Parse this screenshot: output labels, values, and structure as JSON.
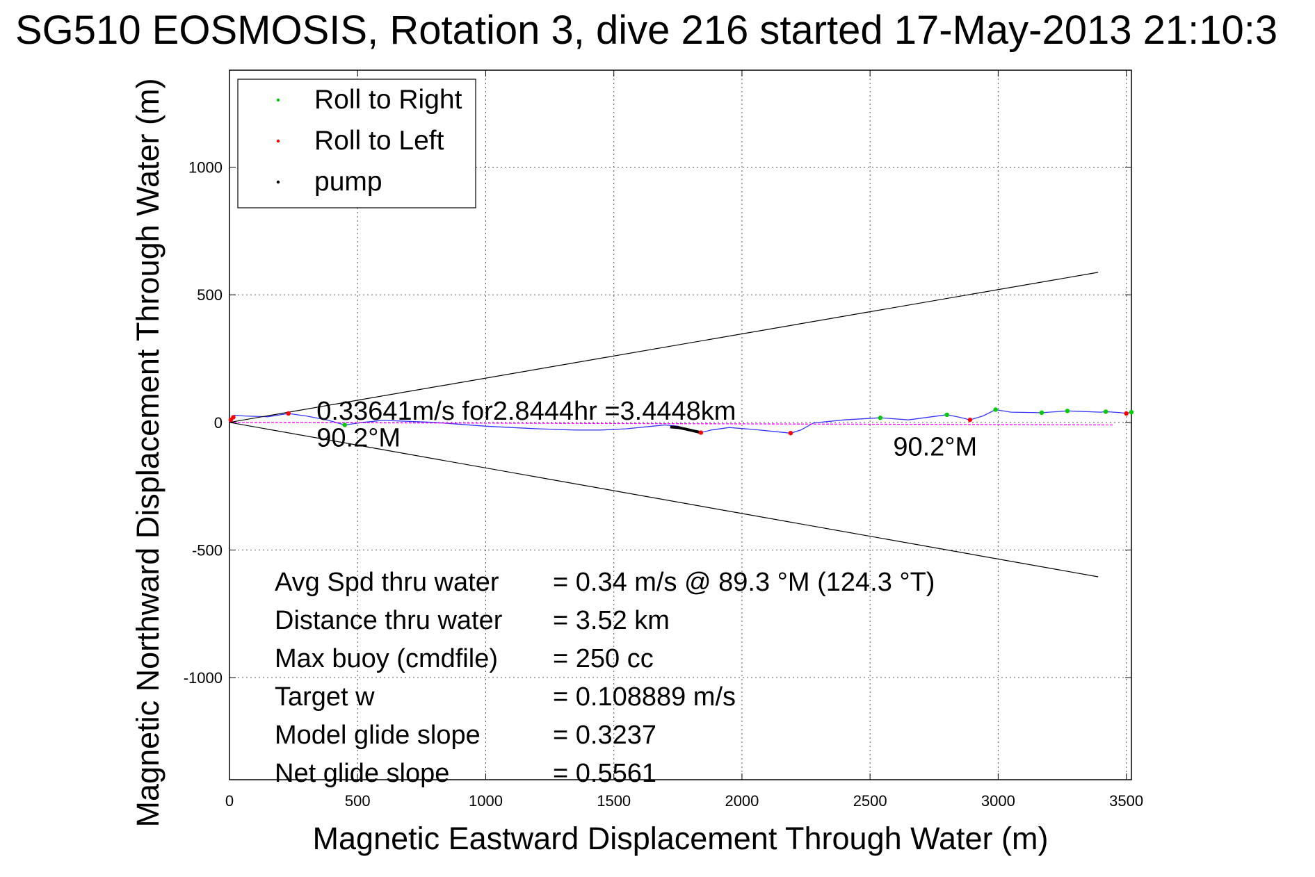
{
  "chart_data": {
    "type": "line",
    "title": "SG510 EOSMOSIS, Rotation 3, dive 216 started 17-May-2013 21:10:3",
    "xlabel": "Magnetic Eastward Displacement Through Water (m)",
    "ylabel": "Magnetic Northward Displacement Through Water (m)",
    "xlim": [
      0,
      3520
    ],
    "ylim": [
      -1400,
      1380
    ],
    "xticks": [
      0,
      500,
      1000,
      1500,
      2000,
      2500,
      3000,
      3500
    ],
    "yticks": [
      -1000,
      -500,
      0,
      500,
      1000
    ],
    "grid": true,
    "legend_position": "top-left",
    "legend": [
      {
        "label": "Roll to Right",
        "color": "#00cc00"
      },
      {
        "label": "Roll to Left",
        "color": "#ff0000"
      },
      {
        "label": "pump",
        "color": "#000000"
      }
    ],
    "series": [
      {
        "style": "track",
        "color": "#3333ff",
        "x": [
          0,
          10,
          20,
          60,
          150,
          230,
          300,
          380,
          450,
          520,
          600,
          800,
          1000,
          1200,
          1350,
          1450,
          1550,
          1650,
          1700,
          1750,
          1800,
          1840,
          1880,
          1950,
          2050,
          2150,
          2190,
          2230,
          2280,
          2400,
          2540,
          2650,
          2800,
          2850,
          2890,
          2940,
          2990,
          3050,
          3170,
          3270,
          3400,
          3420,
          3480,
          3500,
          3520
        ],
        "y": [
          0,
          25,
          28,
          25,
          22,
          35,
          25,
          10,
          -10,
          0,
          8,
          0,
          -15,
          -25,
          -30,
          -30,
          -25,
          -15,
          -10,
          -15,
          -30,
          -40,
          -30,
          -20,
          -28,
          -38,
          -42,
          -30,
          -2,
          10,
          18,
          10,
          30,
          20,
          10,
          25,
          50,
          40,
          38,
          45,
          40,
          42,
          38,
          35,
          40
        ]
      },
      {
        "style": "heading",
        "color": "#ff00ff",
        "x": [
          0,
          3450
        ],
        "y": [
          0,
          -10
        ]
      },
      {
        "style": "pump",
        "color": "#000000",
        "x": [
          1720,
          1750,
          1780,
          1810,
          1840
        ],
        "y": [
          -18,
          -20,
          -26,
          -33,
          -40
        ]
      },
      {
        "style": "cone",
        "color": "#000000",
        "x": [
          0,
          3390
        ],
        "y": [
          0,
          588
        ]
      },
      {
        "style": "cone",
        "color": "#000000",
        "x": [
          0,
          3390
        ],
        "y": [
          0,
          -605
        ]
      }
    ],
    "roll_right_points": {
      "x": [
        450,
        2540,
        2800,
        2990,
        3170,
        3270,
        3420,
        3520
      ],
      "y": [
        -10,
        18,
        30,
        50,
        38,
        45,
        42,
        40
      ]
    },
    "roll_left_points": {
      "x": [
        5,
        15,
        230,
        1840,
        2190,
        2890,
        3500
      ],
      "y": [
        10,
        20,
        35,
        -40,
        -42,
        10,
        35
      ]
    },
    "annotations": [
      {
        "text": "0.33641m/s for2.8444hr =3.4448km",
        "x": 340,
        "y": 10
      },
      {
        "text": "90.2°M",
        "x": 340,
        "y": -95
      },
      {
        "text": "90.2°M",
        "x": 2590,
        "y": -130
      }
    ],
    "stats": [
      {
        "label": "Avg Spd thru water",
        "value": "=  0.34 m/s @  89.3 °M (124.3 °T)"
      },
      {
        "label": "Distance thru water",
        "value": "=  3.52 km"
      },
      {
        "label": "Max buoy (cmdfile)",
        "value": "= 250 cc"
      },
      {
        "label": "Target w",
        "value": "= 0.108889 m/s"
      },
      {
        "label": "Model glide slope",
        "value": "= 0.3237"
      },
      {
        "label": "Net glide slope",
        "value": "= 0.5561"
      }
    ]
  }
}
